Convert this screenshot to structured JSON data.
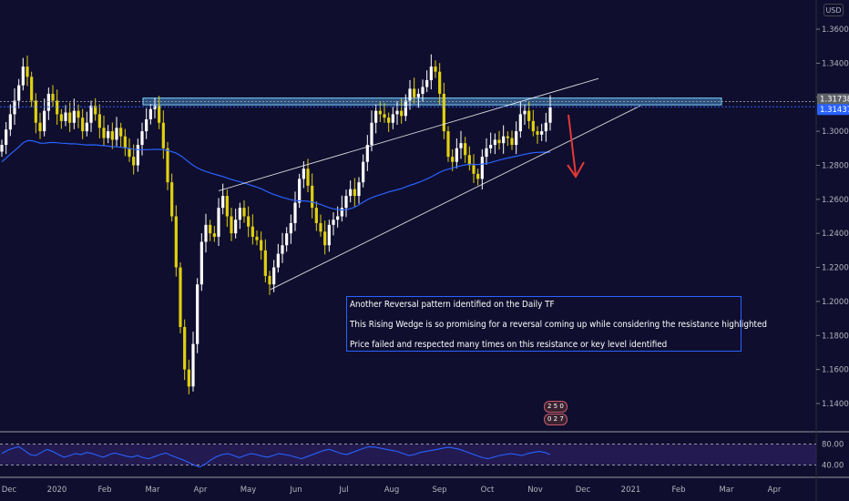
{
  "header": {
    "currency": "USD"
  },
  "badges": [
    "2 5 0",
    "0 2 7"
  ],
  "annotation": {
    "line1": "Another Reversal pattern identified on the Daily TF",
    "line2": "This Rising Wedge is so promising for a reversal coming up while considering the resistance highlighted",
    "line3": "Price failed and respected many times on this resistance or key level identified"
  },
  "chart_data": [
    {
      "type": "candlestick",
      "title": "",
      "price_axis": {
        "ticks": [
          "1.36000",
          "1.34000",
          "1.32000",
          "1.30000",
          "1.28000",
          "1.26000",
          "1.24000",
          "1.22000",
          "1.20000",
          "1.18000",
          "1.16000",
          "1.14000"
        ],
        "range": [
          1.125,
          1.372
        ]
      },
      "time_axis": {
        "labels": [
          "Dec",
          "2020",
          "Feb",
          "Mar",
          "Apr",
          "May",
          "Jun",
          "Jul",
          "Aug",
          "Sep",
          "Oct",
          "Nov",
          "Dec",
          "2021",
          "Feb",
          "Mar",
          "Apr"
        ]
      },
      "price_tags": [
        {
          "value": "1.31738",
          "color": "#5f6368"
        },
        {
          "value": "1.31437",
          "color": "#2962ff"
        }
      ],
      "colors": {
        "up": "#ffffff",
        "down": "#e0d010",
        "moving_average": "#2962ff",
        "resistance_zone": "#4fa3e0",
        "arrow": "#e53935"
      },
      "resistance_zone": [
        1.3155,
        1.3195
      ],
      "close_series": [
        1.292,
        1.301,
        1.31,
        1.318,
        1.327,
        1.338,
        1.332,
        1.318,
        1.305,
        1.3,
        1.312,
        1.322,
        1.318,
        1.31,
        1.306,
        1.311,
        1.305,
        1.312,
        1.308,
        1.3,
        1.305,
        1.315,
        1.31,
        1.302,
        1.296,
        1.3,
        1.295,
        1.302,
        1.297,
        1.29,
        1.285,
        1.28,
        1.292,
        1.3,
        1.307,
        1.313,
        1.315,
        1.305,
        1.29,
        1.27,
        1.25,
        1.22,
        1.185,
        1.16,
        1.15,
        1.175,
        1.21,
        1.235,
        1.245,
        1.24,
        1.238,
        1.255,
        1.262,
        1.25,
        1.24,
        1.248,
        1.255,
        1.25,
        1.244,
        1.238,
        1.236,
        1.23,
        1.215,
        1.21,
        1.22,
        1.228,
        1.233,
        1.24,
        1.246,
        1.258,
        1.272,
        1.278,
        1.268,
        1.255,
        1.246,
        1.241,
        1.233,
        1.245,
        1.248,
        1.25,
        1.255,
        1.262,
        1.266,
        1.262,
        1.27,
        1.282,
        1.292,
        1.305,
        1.312,
        1.31,
        1.308,
        1.305,
        1.31,
        1.312,
        1.309,
        1.318,
        1.325,
        1.32,
        1.322,
        1.326,
        1.33,
        1.338,
        1.335,
        1.322,
        1.3,
        1.285,
        1.282,
        1.29,
        1.293,
        1.286,
        1.28,
        1.275,
        1.272,
        1.285,
        1.29,
        1.292,
        1.295,
        1.293,
        1.297,
        1.296,
        1.292,
        1.3,
        1.31,
        1.312,
        1.306,
        1.3,
        1.298,
        1.3,
        1.305,
        1.314
      ],
      "rsi": {
        "levels": [
          "80.00",
          "40.00"
        ],
        "series": [
          62,
          68,
          72,
          75,
          68,
          60,
          58,
          64,
          70,
          66,
          60,
          55,
          58,
          62,
          60,
          64,
          62,
          58,
          55,
          60,
          63,
          60,
          57,
          55,
          58,
          54,
          52,
          56,
          60,
          63,
          58,
          54,
          50,
          45,
          40,
          36,
          42,
          50,
          56,
          60,
          62,
          58,
          54,
          58,
          62,
          60,
          57,
          55,
          58,
          62,
          60,
          58,
          55,
          52,
          56,
          60,
          64,
          68,
          70,
          66,
          62,
          60,
          64,
          68,
          72,
          75,
          74,
          72,
          70,
          68,
          66,
          62,
          58,
          60,
          64,
          66,
          68,
          70,
          72,
          74,
          72,
          70,
          66,
          62,
          58,
          54,
          52,
          55,
          58,
          60,
          62,
          60,
          58,
          62,
          64,
          66,
          64,
          60
        ]
      }
    }
  ]
}
